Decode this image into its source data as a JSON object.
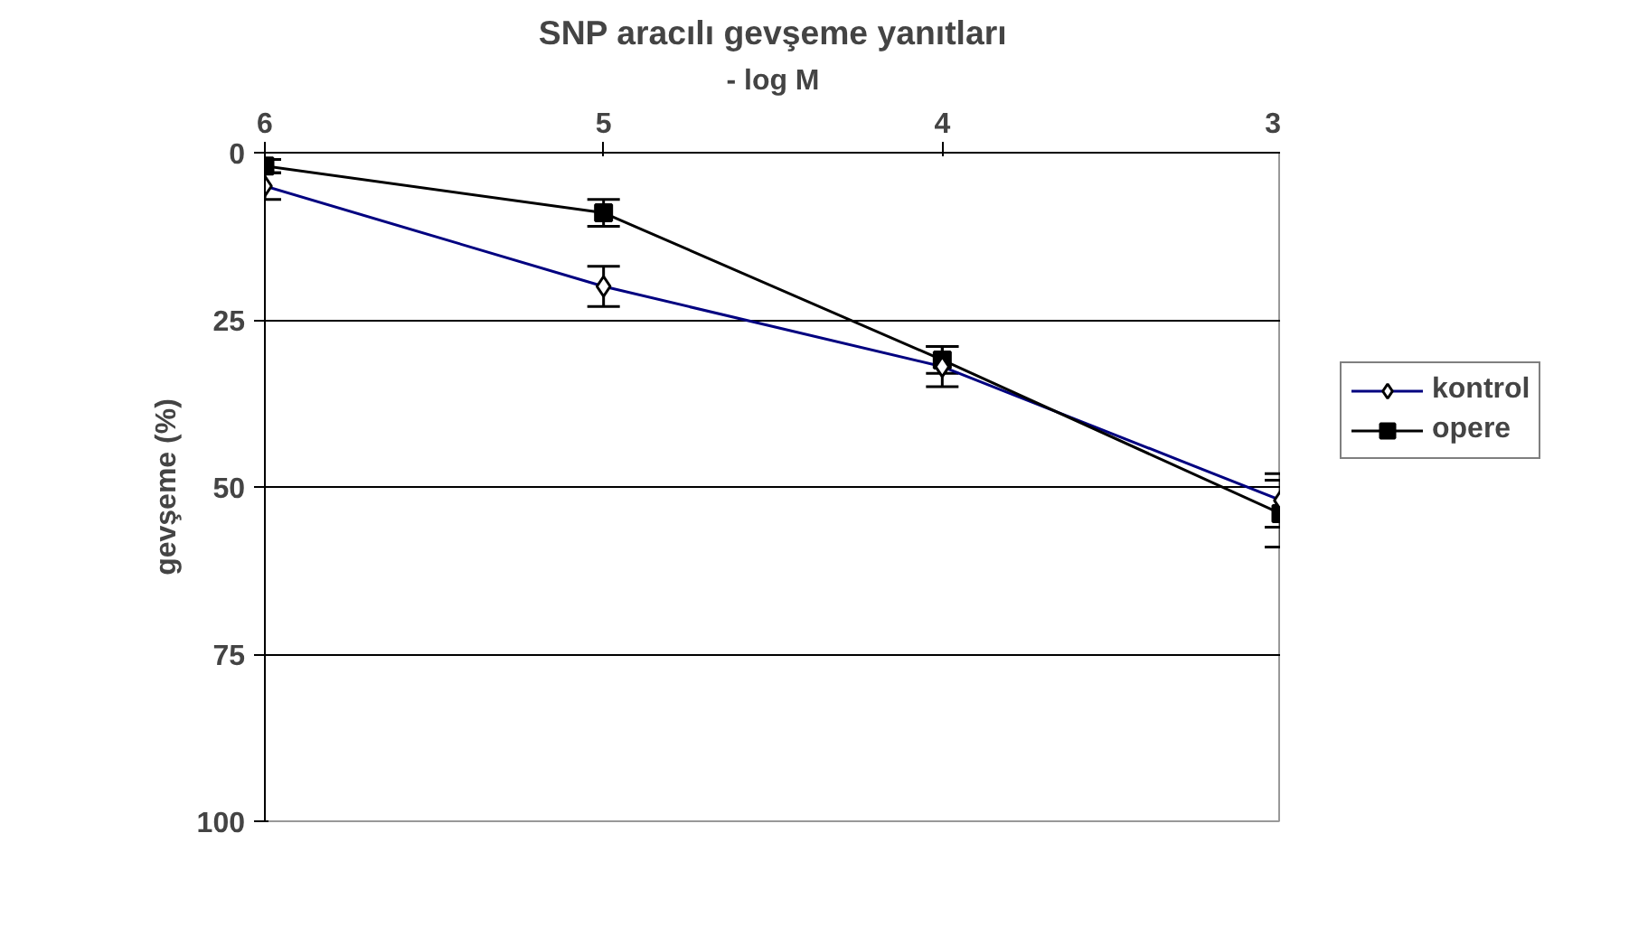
{
  "chart_data": {
    "type": "line",
    "title": "SNP aracılı gevşeme yanıtları",
    "xlabel": "- log M",
    "ylabel": "gevşeme (%)",
    "x": [
      6,
      5,
      4,
      3
    ],
    "xlim": [
      6,
      3
    ],
    "xticks": [
      6,
      5,
      4,
      3
    ],
    "ylim": [
      100,
      0
    ],
    "yticks": [
      0,
      25,
      50,
      75,
      100
    ],
    "grid": "y",
    "legend": "right",
    "series": [
      {
        "name": "kontrol",
        "color": "#000080",
        "marker": "diamond",
        "values": [
          5,
          20,
          32,
          52
        ],
        "errors": [
          2,
          3,
          3,
          4
        ]
      },
      {
        "name": "opere",
        "color": "#000000",
        "marker": "square",
        "values": [
          2,
          9,
          31,
          54
        ],
        "errors": [
          1,
          2,
          2,
          5
        ]
      }
    ]
  }
}
